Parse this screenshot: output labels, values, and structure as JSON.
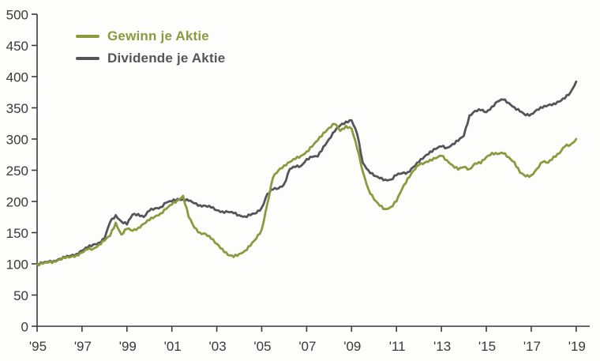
{
  "legend": {
    "items": [
      {
        "label": "Gewinn je Aktie",
        "color": "#8A9A3E"
      },
      {
        "label": "Dividende je Aktie",
        "color": "#54555A"
      }
    ]
  },
  "colors": {
    "axis": "#3B3C41",
    "tick_label": "#38393D",
    "background": "#FDFDFB"
  },
  "chart_data": {
    "type": "line",
    "title": "",
    "xlabel": "",
    "ylabel": "",
    "grid": false,
    "legend_position": "top-left",
    "xlim": [
      1995,
      2019
    ],
    "ylim": [
      0,
      500
    ],
    "yticks": [
      0,
      50,
      100,
      150,
      200,
      250,
      300,
      350,
      400,
      450,
      500
    ],
    "xticks": [
      1995,
      1997,
      1999,
      2001,
      2003,
      2005,
      2007,
      2009,
      2011,
      2013,
      2015,
      2017,
      2019
    ],
    "xtick_labels": [
      "'95",
      "'97",
      "'99",
      "'01",
      "'03",
      "'05",
      "'07",
      "'09",
      "'11",
      "'13",
      "'15",
      "'17",
      "'19"
    ],
    "x": [
      1995,
      1995.25,
      1995.5,
      1995.75,
      1996,
      1996.25,
      1996.5,
      1996.75,
      1997,
      1997.25,
      1997.5,
      1997.75,
      1998,
      1998.25,
      1998.5,
      1998.75,
      1999,
      1999.25,
      1999.5,
      1999.75,
      2000,
      2000.25,
      2000.5,
      2000.75,
      2001,
      2001.25,
      2001.5,
      2001.75,
      2002,
      2002.25,
      2002.5,
      2002.75,
      2003,
      2003.25,
      2003.5,
      2003.75,
      2004,
      2004.25,
      2004.5,
      2004.75,
      2005,
      2005.25,
      2005.5,
      2005.75,
      2006,
      2006.25,
      2006.5,
      2006.75,
      2007,
      2007.25,
      2007.5,
      2007.75,
      2008,
      2008.25,
      2008.5,
      2008.75,
      2009,
      2009.25,
      2009.5,
      2009.75,
      2010,
      2010.25,
      2010.5,
      2010.75,
      2011,
      2011.25,
      2011.5,
      2011.75,
      2012,
      2012.25,
      2012.5,
      2012.75,
      2013,
      2013.25,
      2013.5,
      2013.75,
      2014,
      2014.25,
      2014.5,
      2014.75,
      2015,
      2015.25,
      2015.5,
      2015.75,
      2016,
      2016.25,
      2016.5,
      2016.75,
      2017,
      2017.25,
      2017.5,
      2017.75,
      2018,
      2018.25,
      2018.5,
      2018.75,
      2019
    ],
    "series": [
      {
        "name": "Gewinn je Aktie",
        "color": "#8A9A3E",
        "values": [
          99,
          100,
          102,
          104,
          107,
          109,
          111,
          114,
          118,
          123,
          124,
          131,
          137,
          145,
          166,
          147,
          156,
          153,
          158,
          164,
          170,
          176,
          181,
          188,
          195,
          202,
          209,
          175,
          158,
          150,
          148,
          140,
          132,
          124,
          114,
          111,
          116,
          121,
          129,
          140,
          155,
          196,
          238,
          250,
          258,
          263,
          268,
          273,
          280,
          288,
          298,
          310,
          318,
          324,
          313,
          321,
          317,
          285,
          248,
          220,
          203,
          193,
          188,
          191,
          200,
          220,
          237,
          249,
          258,
          262,
          267,
          269,
          273,
          266,
          258,
          251,
          255,
          252,
          261,
          261,
          271,
          278,
          276,
          277,
          271,
          263,
          246,
          240,
          242,
          252,
          263,
          262,
          272,
          277,
          288,
          291,
          300
        ]
      },
      {
        "name": "Dividende je Aktie",
        "color": "#54555A",
        "values": [
          100,
          101,
          103,
          105,
          108,
          110,
          113,
          116,
          121,
          126,
          131,
          134,
          140,
          167,
          178,
          168,
          163,
          179,
          180,
          175,
          185,
          189,
          191,
          198,
          200,
          204,
          203,
          201,
          197,
          194,
          193,
          190,
          186,
          184,
          183,
          181,
          178,
          176,
          178,
          181,
          190,
          212,
          219,
          221,
          228,
          252,
          255,
          257,
          268,
          271,
          272,
          288,
          300,
          312,
          322,
          328,
          330,
          308,
          262,
          250,
          241,
          237,
          235,
          235,
          242,
          245,
          247,
          255,
          263,
          272,
          280,
          284,
          288,
          286,
          292,
          297,
          305,
          338,
          345,
          346,
          343,
          352,
          360,
          363,
          358,
          351,
          344,
          338,
          340,
          347,
          350,
          354,
          357,
          360,
          365,
          375,
          392
        ]
      }
    ]
  }
}
